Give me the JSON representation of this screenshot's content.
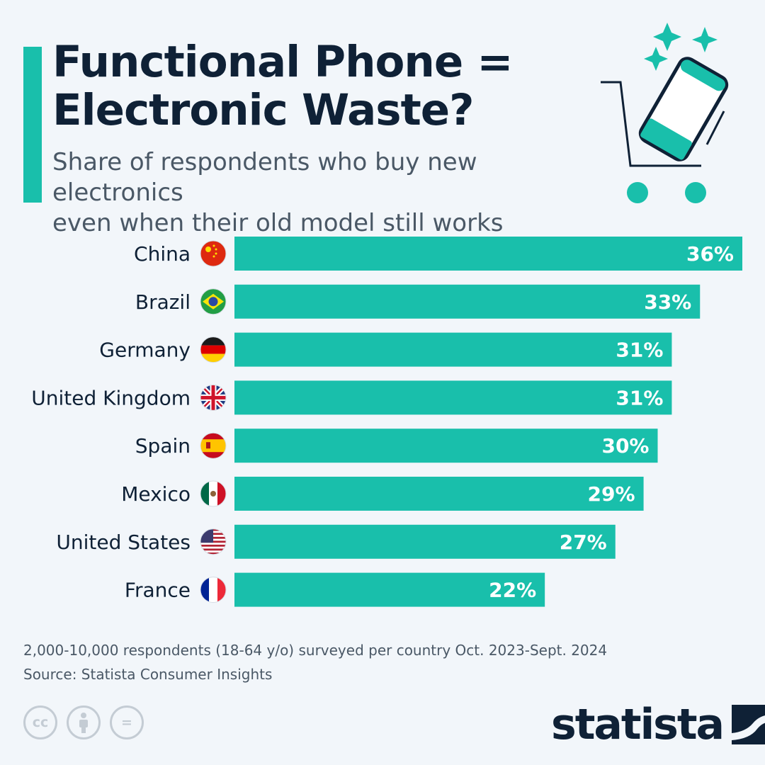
{
  "header": {
    "title_line1": "Functional Phone =",
    "title_line2": "Electronic Waste?",
    "subtitle_line1": "Share of respondents who buy new electronics",
    "subtitle_line2": "even when their old model still works"
  },
  "chart_data": {
    "type": "bar",
    "orientation": "horizontal",
    "categories": [
      "China",
      "Brazil",
      "Germany",
      "United Kingdom",
      "Spain",
      "Mexico",
      "United States",
      "France"
    ],
    "values": [
      36,
      33,
      31,
      31,
      30,
      29,
      27,
      22
    ],
    "value_labels": [
      "36%",
      "33%",
      "31%",
      "31%",
      "30%",
      "29%",
      "27%",
      "22%"
    ],
    "flags": [
      "flag-china-icon",
      "flag-brazil-icon",
      "flag-germany-icon",
      "flag-uk-icon",
      "flag-spain-icon",
      "flag-mexico-icon",
      "flag-usa-icon",
      "flag-france-icon"
    ],
    "xlim": [
      0,
      36
    ],
    "grid": false,
    "bar_color": "#19bfab"
  },
  "footer": {
    "note": "2,000-10,000 respondents (18-64 y/o) surveyed per country Oct. 2023-Sept. 2024",
    "source": "Source: Statista Consumer Insights",
    "license_icons": [
      "cc-icon",
      "attribution-icon",
      "no-derivatives-icon"
    ],
    "license_cc": "cc",
    "license_nd": "="
  },
  "brand": {
    "name": "statista",
    "accent": "#19bfab",
    "text_color": "#0f2136"
  }
}
